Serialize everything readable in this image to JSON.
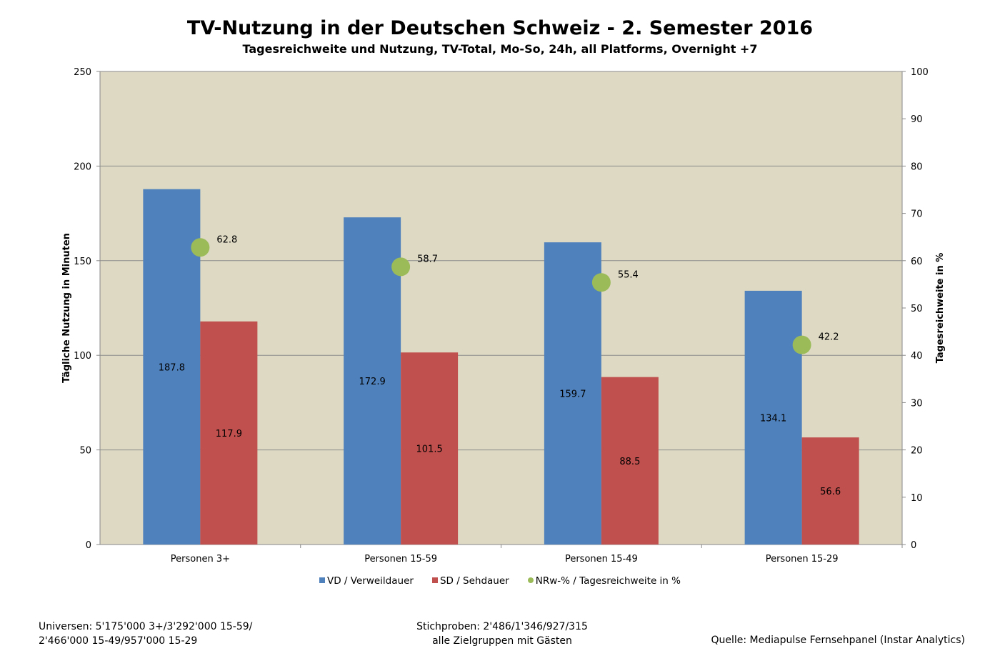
{
  "chart_data": {
    "type": "bar",
    "title": "TV-Nutzung in der Deutschen Schweiz - 2. Semester 2016",
    "subtitle": "Tagesreichweite und Nutzung, TV-Total, Mo-So, 24h, all Platforms, Overnight +7",
    "categories": [
      "Personen 3+",
      "Personen 15-59",
      "Personen 15-49",
      "Personen 15-29"
    ],
    "series": [
      {
        "name": "VD / Verweildauer",
        "axis": "left",
        "kind": "bar",
        "color": "#4F81BD",
        "values": [
          187.8,
          172.9,
          159.7,
          134.1
        ]
      },
      {
        "name": "SD / Sehdauer",
        "axis": "left",
        "kind": "bar",
        "color": "#C0504D",
        "values": [
          117.9,
          101.5,
          88.5,
          56.6
        ]
      },
      {
        "name": "NRw-% / Tagesreichweite in %",
        "axis": "right",
        "kind": "point",
        "color": "#9BBB59",
        "values": [
          62.8,
          58.7,
          55.4,
          42.2
        ]
      }
    ],
    "ylabel": "Tägliche Nutzung in Minuten",
    "y2label": "Tagesreichweite in %",
    "ylim": [
      0,
      250
    ],
    "y2lim": [
      0,
      100
    ],
    "yticks": [
      0,
      50,
      100,
      150,
      200,
      250
    ],
    "y2ticks": [
      0,
      10,
      20,
      30,
      40,
      50,
      60,
      70,
      80,
      90,
      100
    ],
    "grid": true,
    "legend": "bottom",
    "plot_background": "#DDD9C3"
  },
  "footer": {
    "universes_line1": "Universen: 5'175'000 3+/3'292'000 15-59/",
    "universes_line2": "2'466'000 15-49/957'000 15-29",
    "samples_line1": "Stichproben: 2'486/1'346/927/315",
    "samples_line2": "alle Zielgruppen mit Gästen",
    "source": "Quelle: Mediapulse Fernsehpanel (Instar Analytics)"
  }
}
